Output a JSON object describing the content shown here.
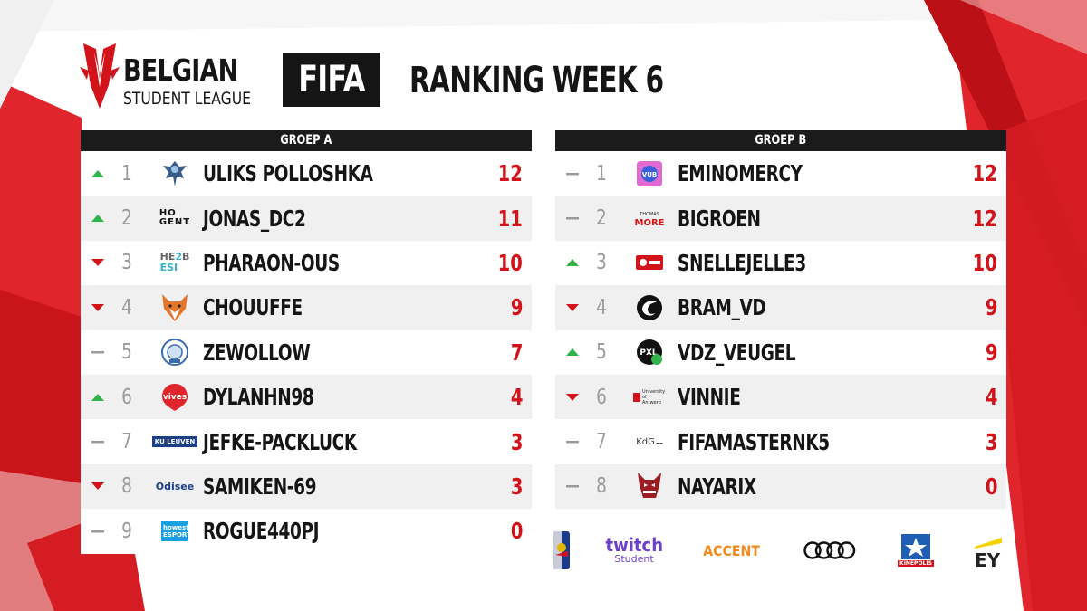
{
  "brand": {
    "name_line1": "BELGIAN",
    "name_line2": "STUDENT LEAGUE",
    "game": "FIFA",
    "headline": "RANKING WEEK 6"
  },
  "colors": {
    "accent_red": "#d2141a",
    "up_green": "#2fb34a",
    "down_red": "#d2141a",
    "same_gray": "#9a9a9a",
    "header_dark": "#1b1b1b"
  },
  "groups": [
    {
      "title": "GROEP A",
      "rows": [
        {
          "trend": "up",
          "rank": "1",
          "logo": "eagle-crest-icon",
          "player": "ULIKS POLLOSHKA",
          "points": "12"
        },
        {
          "trend": "up",
          "rank": "2",
          "logo": "hogent-logo-icon",
          "logo_text": "HO GENT",
          "player": "JONAS_DC2",
          "points": "11"
        },
        {
          "trend": "down",
          "rank": "3",
          "logo": "he2b-esi-logo-icon",
          "logo_text": "HE2B ESI",
          "player": "PHARAON-OUS",
          "points": "10"
        },
        {
          "trend": "down",
          "rank": "4",
          "logo": "fox-head-icon",
          "player": "CHOUUFFE",
          "points": "9"
        },
        {
          "trend": "same",
          "rank": "5",
          "logo": "round-seal-icon",
          "player": "ZEWOLLOW",
          "points": "7"
        },
        {
          "trend": "up",
          "rank": "6",
          "logo": "vives-balloon-icon",
          "logo_text": "vives",
          "player": "DYLANHN98",
          "points": "4"
        },
        {
          "trend": "same",
          "rank": "7",
          "logo": "ku-leuven-logo-icon",
          "logo_text": "KU LEUVEN",
          "player": "JEFKE-PACKLUCK",
          "points": "3"
        },
        {
          "trend": "down",
          "rank": "8",
          "logo": "odisee-logo-icon",
          "logo_text": "Odisee",
          "player": "SAMIKEN-69",
          "points": "3"
        },
        {
          "trend": "same",
          "rank": "9",
          "logo": "howest-esports-logo-icon",
          "logo_text": "howest ESPORTS",
          "player": "ROGUE440PJ",
          "points": "0"
        }
      ]
    },
    {
      "title": "GROEP B",
      "rows": [
        {
          "trend": "same",
          "rank": "1",
          "logo": "vub-gaming-logo-icon",
          "logo_text": "VUB",
          "player": "EMINOMERCY",
          "points": "12"
        },
        {
          "trend": "same",
          "rank": "2",
          "logo": "thomas-more-logo-icon",
          "logo_text": "MORE",
          "player": "BIGROEN",
          "points": "12"
        },
        {
          "trend": "up",
          "rank": "3",
          "logo": "red-badge-logo-icon",
          "player": "SNELLEJELLE3",
          "points": "10"
        },
        {
          "trend": "down",
          "rank": "4",
          "logo": "swirl-logo-icon",
          "player": "BRAM_VD",
          "points": "9"
        },
        {
          "trend": "up",
          "rank": "5",
          "logo": "pxl-gamepad-logo-icon",
          "logo_text": "PXL",
          "player": "VDZ_VEUGEL",
          "points": "9"
        },
        {
          "trend": "down",
          "rank": "6",
          "logo": "university-antwerp-logo-icon",
          "logo_text": "University of Antwerp",
          "player": "VINNIE",
          "points": "4"
        },
        {
          "trend": "same",
          "rank": "7",
          "logo": "kdg-logo-icon",
          "logo_text": "KdG",
          "player": "FIFAMASTERNK5",
          "points": "3"
        },
        {
          "trend": "same",
          "rank": "8",
          "logo": "demon-mascot-icon",
          "player": "NAYARIX",
          "points": "0"
        }
      ]
    }
  ],
  "sponsors": [
    {
      "name": "red-bull-can-icon"
    },
    {
      "name": "twitch-student-logo",
      "text": "twitch",
      "sub": "Student"
    },
    {
      "name": "accent-logo",
      "text": "ACCENT"
    },
    {
      "name": "audi-rings-logo"
    },
    {
      "name": "kinepolis-logo",
      "text": "KINEPOLIS"
    },
    {
      "name": "ey-logo",
      "text": "EY"
    }
  ]
}
